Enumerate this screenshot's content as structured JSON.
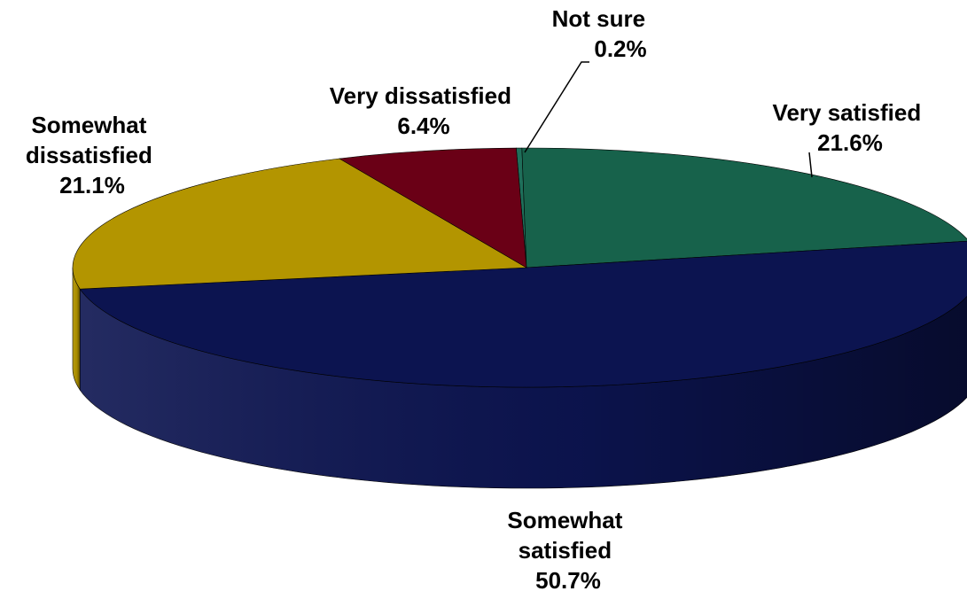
{
  "chart_data": {
    "type": "pie",
    "style": "3d",
    "slices": [
      {
        "key": "not_sure",
        "label_lines": [
          "Not sure"
        ],
        "percent_text": "0.2%",
        "value": 0.2,
        "color": "#1f6f5a",
        "dark": "#0f3d31"
      },
      {
        "key": "very_satisfied",
        "label_lines": [
          "Very satisfied"
        ],
        "percent_text": "21.6%",
        "value": 21.6,
        "color": "#17624b",
        "dark": "#0b3428"
      },
      {
        "key": "somewhat_satisfied",
        "label_lines": [
          "Somewhat",
          "satisfied"
        ],
        "percent_text": "50.7%",
        "value": 50.7,
        "color": "#0c1450",
        "dark": "#040822"
      },
      {
        "key": "somewhat_dissatisfied",
        "label_lines": [
          "Somewhat",
          "dissatisfied"
        ],
        "percent_text": "21.1%",
        "value": 21.1,
        "color": "#b39500",
        "dark": "#6e5a00"
      },
      {
        "key": "very_dissatisfied",
        "label_lines": [
          "Very dissatisfied"
        ],
        "percent_text": "6.4%",
        "value": 6.4,
        "color": "#6a0016",
        "dark": "#3a000b"
      }
    ],
    "legend": "none",
    "data_labels": "outside with leader lines"
  }
}
